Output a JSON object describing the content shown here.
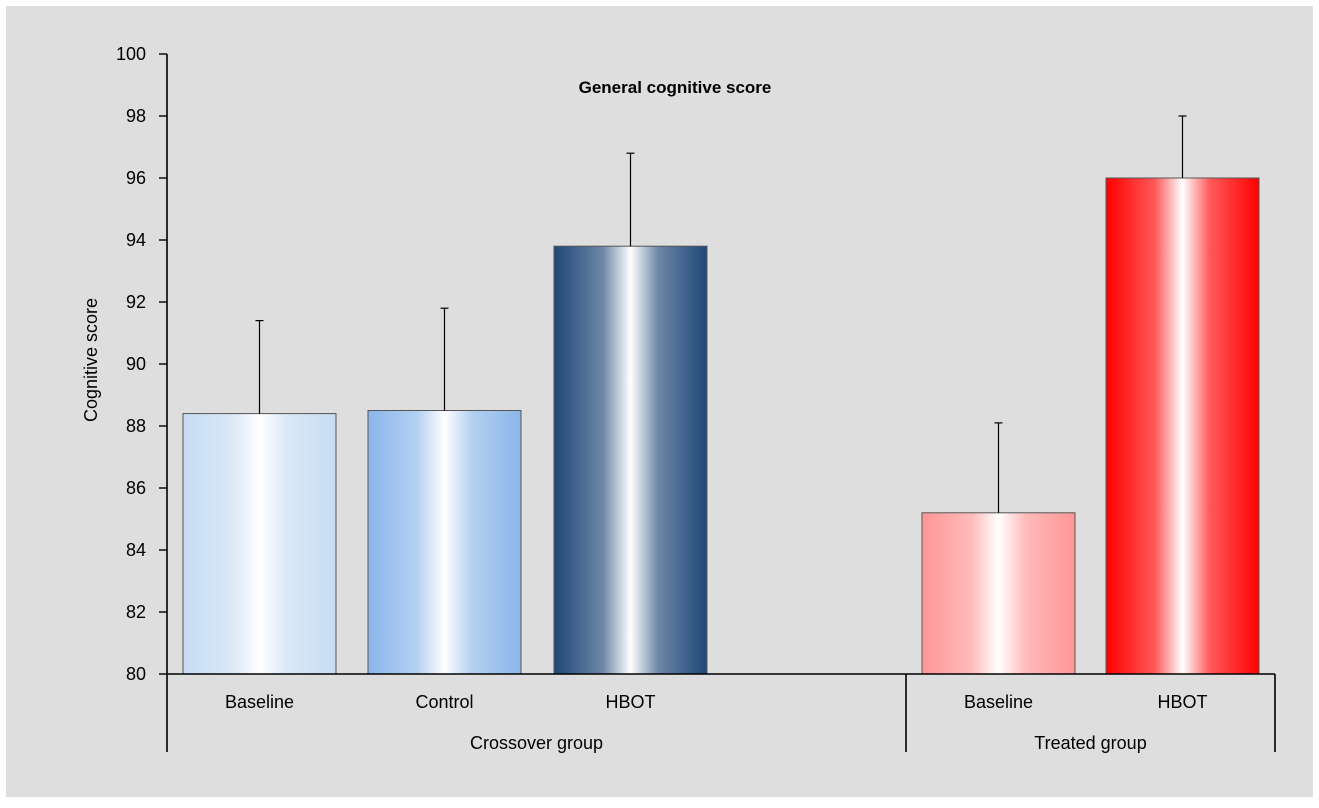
{
  "chart_data": {
    "type": "bar",
    "title": "General cognitive score",
    "ylabel": "Cognitive score",
    "xlabel": "",
    "ylim": [
      80,
      100
    ],
    "yticks": [
      80,
      82,
      84,
      86,
      88,
      90,
      92,
      94,
      96,
      98,
      100
    ],
    "grid": false,
    "legend": "none",
    "groups": [
      {
        "label": "Crossover group",
        "bars": [
          {
            "category": "Baseline",
            "value": 88.4,
            "error": 3.0,
            "color": "#c6dcf3"
          },
          {
            "category": "Control",
            "value": 88.5,
            "error": 3.3,
            "color": "#8ab6ea"
          },
          {
            "category": "HBOT",
            "value": 93.8,
            "error": 3.0,
            "color": "#1f4778"
          }
        ]
      },
      {
        "label": "Treated group",
        "bars": [
          {
            "category": "Baseline",
            "value": 85.2,
            "error": 2.9,
            "color": "#ff9595"
          },
          {
            "category": "HBOT",
            "value": 96.0,
            "error": 2.0,
            "color": "#ff0000"
          }
        ]
      }
    ]
  }
}
